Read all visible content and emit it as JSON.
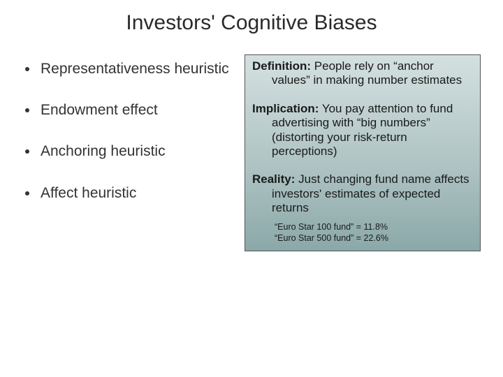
{
  "title": "Investors' Cognitive Biases",
  "bullets": [
    "Representativeness heuristic",
    "Endowment effect",
    "Anchoring heuristic",
    "Affect heuristic"
  ],
  "box": {
    "background_gradient": [
      "#d4e0e0",
      "#b0c4c4",
      "#8ba8a8"
    ],
    "border_color": "#555555",
    "paragraphs": [
      {
        "lead": "Definition:",
        "body": "  People rely on “anchor values” in making number estimates"
      },
      {
        "lead": "Implication:",
        "body": "  You pay attention to fund advertising with “big numbers” (distorting your risk-return perceptions)"
      },
      {
        "lead": "Reality:",
        "body": "  Just changing fund name affects investors' estimates of expected returns"
      }
    ],
    "small_lines": [
      "“Euro Star 100 fund” = 11.8%",
      "“Euro Star 500 fund” = 22.6%"
    ]
  },
  "colors": {
    "text": "#333333",
    "background": "#ffffff"
  },
  "fontsizes": {
    "title": 30,
    "bullet": 21,
    "box_para": 17,
    "small": 12.5
  }
}
